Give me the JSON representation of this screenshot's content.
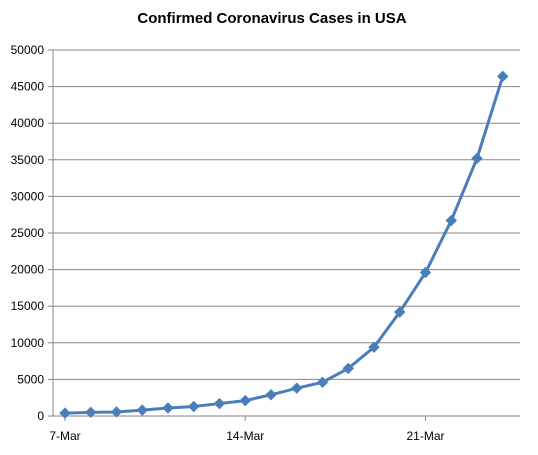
{
  "chart_data": {
    "type": "line",
    "title": "Confirmed Coronavirus Cases in USA",
    "xlabel": "",
    "ylabel": "",
    "ylim": [
      0,
      50000
    ],
    "y_ticks": [
      "0",
      "5000",
      "10000",
      "15000",
      "20000",
      "25000",
      "30000",
      "35000",
      "40000",
      "45000",
      "50000"
    ],
    "x": [
      "7-Mar",
      "8-Mar",
      "9-Mar",
      "10-Mar",
      "11-Mar",
      "12-Mar",
      "13-Mar",
      "14-Mar",
      "15-Mar",
      "16-Mar",
      "17-Mar",
      "18-Mar",
      "19-Mar",
      "20-Mar",
      "21-Mar",
      "22-Mar",
      "23-Mar",
      "24-Mar"
    ],
    "x_tick_labels": [
      "7-Mar",
      "14-Mar",
      "21-Mar"
    ],
    "grid": true,
    "legend": "none",
    "series": [
      {
        "color": "#4a7ebb",
        "marker": "diamond",
        "values": [
          400,
          500,
          550,
          800,
          1100,
          1300,
          1700,
          2100,
          2900,
          3800,
          4600,
          6500,
          9400,
          14200,
          19600,
          26700,
          35200,
          46400
        ]
      }
    ]
  }
}
